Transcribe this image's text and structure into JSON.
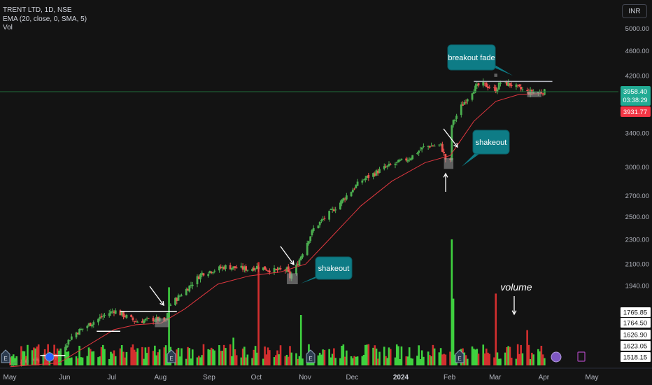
{
  "legend": {
    "symbol": "TRENT LTD, 1D, NSE",
    "ema": "EMA (20, close, 0, SMA, 5)",
    "vol": "Vol"
  },
  "currency_button": "INR",
  "colors": {
    "background": "#131313",
    "up": "#4caf50",
    "down": "#ef5350",
    "ema": "#e0373f",
    "vol_up": "#3fd13f",
    "vol_down": "#d32f2f",
    "callout": "#0e7c86",
    "price_tag": "#22ab94",
    "ema_tag": "#f23645"
  },
  "chart_data": {
    "type": "candlestick",
    "price_axis": {
      "ticks": [
        5000,
        4600,
        4200,
        3400,
        3000,
        2700,
        2500,
        2300,
        2100,
        1940
      ],
      "tick_labels": [
        "5000.00",
        "4600.00",
        "4200.00",
        "3400.00",
        "3000.00",
        "2700.00",
        "2500.00",
        "2300.00",
        "2100.00",
        "1940.00"
      ],
      "scale": "log"
    },
    "price_tags": [
      {
        "label": "3958.40",
        "sub": "03:38:29",
        "kind": "last"
      },
      {
        "label": "3931.77",
        "kind": "ema"
      }
    ],
    "volume_tags": [
      "1765.85",
      "1764.50",
      "1626.90",
      "1623.05",
      "1518.15"
    ],
    "time_axis": [
      "May",
      "Jun",
      "Jul",
      "Aug",
      "Sep",
      "Oct",
      "Nov",
      "Dec",
      "2024",
      "Feb",
      "Mar",
      "Apr",
      "May"
    ],
    "path": [
      [
        "2023-05-01",
        1455
      ],
      [
        "2023-05-15",
        1480
      ],
      [
        "2023-05-31",
        1500
      ],
      [
        "2023-06-10",
        1620
      ],
      [
        "2023-06-20",
        1680
      ],
      [
        "2023-06-30",
        1740
      ],
      [
        "2023-07-06",
        1770
      ],
      [
        "2023-07-20",
        1700
      ],
      [
        "2023-08-01",
        1715
      ],
      [
        "2023-08-08",
        1700
      ],
      [
        "2023-08-10",
        1800
      ],
      [
        "2023-08-20",
        1900
      ],
      [
        "2023-08-31",
        2030
      ],
      [
        "2023-09-15",
        2080
      ],
      [
        "2023-09-30",
        2060
      ],
      [
        "2023-10-05",
        2080
      ],
      [
        "2023-10-15",
        2050
      ],
      [
        "2023-10-24",
        2055
      ],
      [
        "2023-10-26",
        2000
      ],
      [
        "2023-10-30",
        2080
      ],
      [
        "2023-11-10",
        2390
      ],
      [
        "2023-11-25",
        2600
      ],
      [
        "2023-12-10",
        2850
      ],
      [
        "2023-12-25",
        2990
      ],
      [
        "2024-01-10",
        3100
      ],
      [
        "2024-01-20",
        3240
      ],
      [
        "2024-01-30",
        3250
      ],
      [
        "2024-02-02",
        3090
      ],
      [
        "2024-02-05",
        3060
      ],
      [
        "2024-02-06",
        3500
      ],
      [
        "2024-02-12",
        3750
      ],
      [
        "2024-02-20",
        4000
      ],
      [
        "2024-02-25",
        4080
      ],
      [
        "2024-03-05",
        3980
      ],
      [
        "2024-03-08",
        4100
      ],
      [
        "2024-03-15",
        4060
      ],
      [
        "2024-03-25",
        3950
      ],
      [
        "2024-04-05",
        3958
      ]
    ],
    "ema_path": [
      [
        "2023-05-01",
        1440
      ],
      [
        "2023-06-01",
        1460
      ],
      [
        "2023-06-20",
        1560
      ],
      [
        "2023-07-06",
        1650
      ],
      [
        "2023-07-20",
        1680
      ],
      [
        "2023-08-05",
        1690
      ],
      [
        "2023-08-20",
        1780
      ],
      [
        "2023-09-10",
        1950
      ],
      [
        "2023-09-30",
        2010
      ],
      [
        "2023-10-20",
        2040
      ],
      [
        "2023-11-05",
        2100
      ],
      [
        "2023-11-20",
        2300
      ],
      [
        "2023-12-10",
        2600
      ],
      [
        "2023-12-30",
        2850
      ],
      [
        "2024-01-20",
        3050
      ],
      [
        "2024-02-05",
        3130
      ],
      [
        "2024-02-20",
        3550
      ],
      [
        "2024-03-05",
        3820
      ],
      [
        "2024-03-20",
        3920
      ],
      [
        "2024-04-05",
        3932
      ]
    ],
    "volume_spikes": [
      [
        "2023-08-10",
        0.62
      ],
      [
        "2023-09-20",
        0.22
      ],
      [
        "2023-10-06",
        0.82
      ],
      [
        "2023-11-02",
        0.4
      ],
      [
        "2023-11-25",
        0.35
      ],
      [
        "2024-02-06",
        1.0
      ],
      [
        "2024-02-07",
        0.53
      ],
      [
        "2024-03-05",
        0.57
      ],
      [
        "2024-03-25",
        0.28
      ]
    ],
    "annotations": [
      {
        "text": "breakout fade",
        "kind": "callout"
      },
      {
        "text": "shakeout",
        "kind": "callout"
      },
      {
        "text": "shakeout",
        "kind": "callout"
      },
      {
        "text": "volume",
        "kind": "label"
      }
    ],
    "grid": false
  }
}
